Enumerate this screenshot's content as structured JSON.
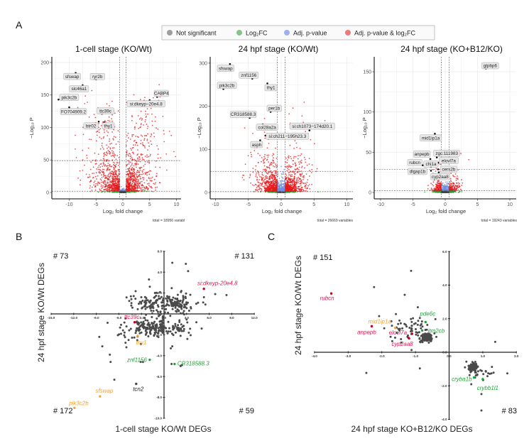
{
  "figure": {
    "panel_labels": [
      "A",
      "B",
      "C"
    ]
  },
  "legend": {
    "items": [
      {
        "label": "Not significant",
        "color": "#9e9e9e"
      },
      {
        "label": "Log₂FC",
        "color": "#86c48b"
      },
      {
        "label": "Adj. p-value",
        "color": "#9eb1ee"
      },
      {
        "label": "Adj. p-value & log₂FC",
        "color": "#ee7b7b"
      }
    ]
  },
  "colors": {
    "not_significant": "#444444",
    "log2fc": "#2e9b2e",
    "adj_p": "#6f8fe0",
    "both": "#e41a1c",
    "label_pink": "#e3194f",
    "label_orange": "#f4a534",
    "label_green": "#22a33a",
    "label_black": "#222222",
    "point_grey": "#4a4a4a"
  },
  "chart_data": [
    {
      "type": "scatter",
      "subtype": "volcano",
      "title": "1-cell stage (KO/Wt)",
      "xlabel": "Log₂ fold change",
      "ylabel": "−Log₁₀ P",
      "xlim": [
        -13,
        11
      ],
      "ylim": [
        -10,
        209
      ],
      "xticks": [
        -10,
        -5,
        0,
        5,
        10
      ],
      "yticks": [
        0,
        50,
        100,
        150,
        200
      ],
      "fc_cutoff": 0.6,
      "p_lines": [
        2,
        49
      ],
      "grid": true,
      "total": "total = 18956 variabl",
      "labeled_points": [
        {
          "gene": "sfswap",
          "x": -8.8,
          "y": 184
        },
        {
          "gene": "ryr2b",
          "x": -5.0,
          "y": 174
        },
        {
          "gene": "slc46a1",
          "x": -7.5,
          "y": 165
        },
        {
          "gene": "pik3c2b",
          "x": -12.0,
          "y": 143
        },
        {
          "gene": "FO704909.2",
          "x": -10.0,
          "y": 131
        },
        {
          "gene": "ttc39c",
          "x": -3.9,
          "y": 121
        },
        {
          "gene": "btr02",
          "x": -4.5,
          "y": 109
        },
        {
          "gene": "thy1",
          "x": -3.5,
          "y": 108
        },
        {
          "gene": "CABP4",
          "x": 6.4,
          "y": 147
        },
        {
          "gene": "si:dkeyp−20e4.8",
          "x": 5.0,
          "y": 142
        }
      ]
    },
    {
      "type": "scatter",
      "subtype": "volcano",
      "title": "24 hpf stage (KO/Wt)",
      "xlabel": "Log₂ fold change",
      "ylabel": "−Log₁₀ P",
      "xlim": [
        -10.8,
        10.9
      ],
      "ylim": [
        -15,
        315
      ],
      "xticks": [
        -10,
        -5,
        0,
        5,
        10
      ],
      "yticks": [
        0,
        100,
        200,
        300
      ],
      "fc_cutoff": 0.6,
      "p_lines": [
        2,
        49
      ],
      "grid": true,
      "total": "total = 26669 variables",
      "labeled_points": [
        {
          "gene": "sfswap",
          "x": -7.8,
          "y": 298
        },
        {
          "gene": "znf1156",
          "x": -4.4,
          "y": 264
        },
        {
          "gene": "pik3c2b",
          "x": -8.8,
          "y": 240
        },
        {
          "gene": "thy1",
          "x": -2.1,
          "y": 253
        },
        {
          "gene": "per1b",
          "x": -1.6,
          "y": 187
        },
        {
          "gene": "CR318588.3",
          "x": -4.8,
          "y": 173
        },
        {
          "gene": "col28a2a",
          "x": -2.8,
          "y": 158
        },
        {
          "gene": "si:ch1073−174d20.1",
          "x": 4.3,
          "y": 144
        },
        {
          "gene": "si:ch211−195h23.3",
          "x": -2.4,
          "y": 132
        },
        {
          "gene": "asph",
          "x": -3.2,
          "y": 121
        }
      ]
    },
    {
      "type": "scatter",
      "subtype": "volcano",
      "title": "24 hpf stage (KO+B12/KO)",
      "xlabel": "Log₂ fold change",
      "ylabel": "−Log₁₀ P",
      "xlim": [
        -11,
        11
      ],
      "ylim": [
        -8,
        168
      ],
      "xticks": [
        -10,
        -5,
        0,
        5,
        10
      ],
      "yticks": [
        0,
        50,
        100,
        150
      ],
      "fc_cutoff": 0.6,
      "p_lines": [
        2,
        28.8
      ],
      "grid": true,
      "total": "total = 19243 variables",
      "labeled_points": [
        {
          "gene": "gtpbp6",
          "x": 6.3,
          "y": 154
        },
        {
          "gene": "mid1ip1a",
          "x": -1.6,
          "y": 73
        },
        {
          "gene": "zgc:111983",
          "x": -1.3,
          "y": 43.5
        },
        {
          "gene": "anpepb",
          "x": -2.3,
          "y": 41.5
        },
        {
          "gene": "rubcn",
          "x": -3.5,
          "y": 33.8
        },
        {
          "gene": "chi1a",
          "x": -2.2,
          "y": 31.8
        },
        {
          "gene": "elovl7a",
          "x": -1.0,
          "y": 37
        },
        {
          "gene": "dlgap1b",
          "x": -2.2,
          "y": 27
        },
        {
          "gene": "cers2b",
          "x": -1.1,
          "y": 28.8
        },
        {
          "gene": "cyp2aa8",
          "x": -1.0,
          "y": 25
        }
      ]
    },
    {
      "type": "scatter",
      "xlabel": "1-cell stage KO/Wt DEGs",
      "ylabel": "24 hpf stage KO/Wt DEGs",
      "xlim": [
        -15,
        12
      ],
      "ylim": [
        -10,
        6
      ],
      "xticks": [
        -15,
        -12,
        -9,
        -6,
        -3,
        0,
        3,
        6,
        9,
        12
      ],
      "yticks": [
        -10,
        -8,
        -6,
        -4,
        -2,
        0,
        2,
        4,
        6
      ],
      "tick_labels_x": [
        "-15.0",
        "-12.0",
        "-9.0",
        "-6.0",
        "-3.0",
        "0.0",
        "3.0",
        "6.0",
        "9.0",
        "12.0"
      ],
      "tick_labels_y": [
        "-10.0",
        "-8.0",
        "-6.0",
        "-4.0",
        "-2.0",
        "0.0",
        "2.0",
        "4.0",
        "6.0"
      ],
      "quadrant_counts": {
        "top_left": "# 73",
        "top_right": "# 131",
        "bottom_left": "# 172",
        "bottom_right": "# 59"
      },
      "labeled_points": [
        {
          "gene": "si:dkeyp-20e4.8",
          "x": 5.3,
          "y": 2.4,
          "color": "label_pink"
        },
        {
          "gene": "ttc39c",
          "x": -3.9,
          "y": -0.8,
          "color": "label_pink"
        },
        {
          "gene": "thy1",
          "x": -3.5,
          "y": -2.1,
          "color": "label_orange"
        },
        {
          "gene": "znf1156",
          "x": -1.9,
          "y": -4.4,
          "color": "label_green"
        },
        {
          "gene": "CR318588.3",
          "x": 1.4,
          "y": -4.8,
          "color": "label_green"
        },
        {
          "gene": "tcn2",
          "x": -3.7,
          "y": -6.7,
          "color": "label_black"
        },
        {
          "gene": "sfswap",
          "x": -8.5,
          "y": -7.9,
          "color": "label_orange"
        },
        {
          "gene": "pik3c2b",
          "x": -11.9,
          "y": -9.0,
          "color": "label_orange"
        }
      ],
      "points": [
        [
          1.1,
          4.9
        ],
        [
          2.9,
          4.8
        ],
        [
          3.2,
          4.1
        ],
        [
          -2.0,
          3.3
        ],
        [
          6.8,
          1.9
        ],
        [
          8.3,
          1.8
        ],
        [
          5.3,
          1.6
        ],
        [
          5.2,
          1.1
        ],
        [
          5.5,
          0.9
        ],
        [
          -3.8,
          1.45
        ],
        [
          -7.5,
          -0.85
        ],
        [
          -8.6,
          -2.2
        ],
        [
          -8.2,
          -3.1
        ],
        [
          -7.2,
          -3.9
        ],
        [
          -7.1,
          -4.6
        ],
        [
          -6.6,
          -6.3
        ],
        [
          -5.0,
          -3.2
        ],
        [
          -3.1,
          -4.6
        ],
        [
          -2.8,
          -4.6
        ],
        [
          1.0,
          -4.8
        ],
        [
          2.2,
          -5.0
        ],
        [
          2.4,
          -4.9
        ],
        [
          0.9,
          -3.3
        ],
        [
          1.1,
          -3.1
        ],
        [
          3.3,
          -1.8
        ],
        [
          5.0,
          -1.4
        ],
        [
          4.3,
          -0.8
        ],
        [
          2.2,
          -2.1
        ],
        [
          3.1,
          -2.4
        ],
        [
          -1.2,
          2.0
        ],
        [
          -0.7,
          1.7
        ],
        [
          2.3,
          2.2
        ]
      ]
    },
    {
      "type": "scatter",
      "xlabel": "24 hpf stage KO+B12/KO DEGs",
      "ylabel": "24 hpf stage KO/Wt DEGs",
      "xlim": [
        -4,
        2
      ],
      "ylim": [
        -4,
        6
      ],
      "xticks": [
        -4,
        -3,
        -2,
        -1,
        0,
        1,
        2
      ],
      "yticks": [
        -4,
        -2,
        0,
        2,
        4,
        6
      ],
      "tick_labels_x": [
        "-4.0",
        "-3.0",
        "-2.0",
        "-1.0",
        "0.0",
        "1.0",
        "2.0"
      ],
      "tick_labels_y": [
        "-4.0",
        "-2.0",
        "0.0",
        "2.0",
        "4.0",
        "6.0"
      ],
      "quadrant_counts": {
        "top_left": "# 151",
        "bottom_right": "# 83"
      },
      "labeled_points": [
        {
          "gene": "rubcn",
          "x": -3.5,
          "y": 3.5,
          "color": "label_pink"
        },
        {
          "gene": "anpepb",
          "x": -2.3,
          "y": 1.55,
          "color": "label_pink"
        },
        {
          "gene": "mid1ip1a",
          "x": -1.6,
          "y": 1.45,
          "color": "label_orange"
        },
        {
          "gene": "elovl7a",
          "x": -1.1,
          "y": 1.1,
          "color": "label_pink"
        },
        {
          "gene": "cyp2aa8",
          "x": -1.2,
          "y": 0.85,
          "color": "label_pink"
        },
        {
          "gene": "pde6c",
          "x": -0.7,
          "y": 1.8,
          "color": "label_green"
        },
        {
          "gene": "itm2cb",
          "x": -0.8,
          "y": 1.3,
          "color": "label_green"
        },
        {
          "gene": "cryba1b",
          "x": 0.74,
          "y": -1.5,
          "color": "label_green"
        },
        {
          "gene": "crybb1l1",
          "x": 1.0,
          "y": -1.6,
          "color": "label_green"
        }
      ],
      "points": [
        [
          -1.13,
          4.85
        ],
        [
          -2.23,
          3.88
        ],
        [
          -1.32,
          3.42
        ],
        [
          -2.08,
          2.15
        ],
        [
          -0.93,
          2.68
        ],
        [
          -2.46,
          -1.23
        ],
        [
          -0.87,
          -0.96
        ],
        [
          1.37,
          0.62
        ],
        [
          1.73,
          -1.26
        ],
        [
          0.96,
          -2.49
        ],
        [
          0.96,
          -3.47
        ],
        [
          -1.43,
          0.78
        ]
      ]
    }
  ]
}
